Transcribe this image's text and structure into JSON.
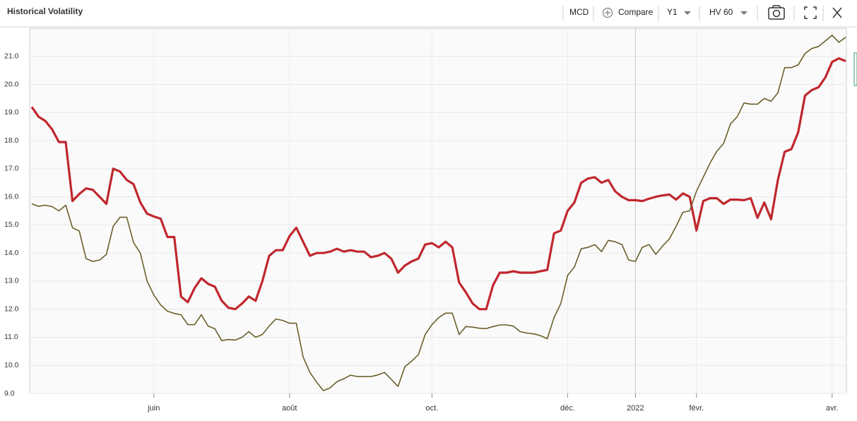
{
  "chart_data": {
    "type": "line",
    "title": "Historical Volatility",
    "categories": [
      null,
      null,
      null,
      null,
      null,
      null,
      null,
      null,
      null,
      null,
      null,
      null,
      null,
      null,
      null,
      null,
      null,
      null,
      "juin",
      null,
      null,
      null,
      null,
      null,
      null,
      null,
      null,
      null,
      null,
      null,
      null,
      null,
      null,
      null,
      null,
      null,
      null,
      null,
      "août",
      null,
      null,
      null,
      null,
      null,
      null,
      null,
      null,
      null,
      null,
      null,
      null,
      null,
      null,
      null,
      null,
      null,
      null,
      null,
      null,
      "oct.",
      null,
      null,
      null,
      null,
      null,
      null,
      null,
      null,
      null,
      null,
      null,
      null,
      null,
      null,
      null,
      null,
      null,
      null,
      null,
      "déc.",
      null,
      null,
      null,
      null,
      null,
      null,
      null,
      null,
      null,
      "2022",
      null,
      null,
      null,
      null,
      null,
      null,
      null,
      null,
      "févr.",
      null,
      null,
      null,
      null,
      null,
      null,
      null,
      null,
      null,
      null,
      null,
      null,
      null,
      null,
      null,
      null,
      null,
      null,
      null,
      "avr.",
      null,
      null
    ],
    "series": [
      {
        "color": "#c0272d",
        "values": [
          19.2,
          18.85,
          18.7,
          18.4,
          17.95,
          17.95,
          15.85,
          16.1,
          16.3,
          16.25,
          16.0,
          15.75,
          17.0,
          16.9,
          16.6,
          16.45,
          15.8,
          15.4,
          15.3,
          15.22,
          14.57,
          14.57,
          12.45,
          12.25,
          12.75,
          13.1,
          12.9,
          12.8,
          12.3,
          12.05,
          12.0,
          12.2,
          12.45,
          12.3,
          13.0,
          13.9,
          14.1,
          14.1,
          14.6,
          14.9,
          14.4,
          13.9,
          14.0,
          14.0,
          14.05,
          14.15,
          14.05,
          14.1,
          14.05,
          14.05,
          13.85,
          13.9,
          14.0,
          13.8,
          13.3,
          13.55,
          13.7,
          13.8,
          14.3,
          14.35,
          14.2,
          14.4,
          14.2,
          12.95,
          12.6,
          12.2,
          12.0,
          12.0,
          12.85,
          13.3,
          13.3,
          13.35,
          13.3,
          13.3,
          13.3,
          13.35,
          13.4,
          14.7,
          14.8,
          15.5,
          15.8,
          16.5,
          16.65,
          16.7,
          16.5,
          16.6,
          16.2,
          16.0,
          15.88,
          15.88,
          15.85,
          15.93,
          16.0,
          16.05,
          16.08,
          15.9,
          16.12,
          16.0,
          14.8,
          15.85,
          15.95,
          15.95,
          15.75,
          15.9,
          15.9,
          15.88,
          15.95,
          15.25,
          15.8,
          15.2,
          16.6,
          17.6,
          17.7,
          18.3,
          19.6,
          19.8,
          19.9,
          20.25,
          20.8,
          20.93,
          20.83
        ]
      },
      {
        "color": "#6b5f2a",
        "values": [
          15.75,
          15.66,
          15.7,
          15.65,
          15.5,
          15.7,
          14.9,
          14.78,
          13.8,
          13.7,
          13.75,
          13.95,
          14.95,
          15.27,
          15.27,
          14.37,
          14.0,
          13.0,
          12.5,
          12.15,
          11.93,
          11.85,
          11.8,
          11.45,
          11.45,
          11.8,
          11.4,
          11.3,
          10.88,
          10.92,
          10.9,
          11.0,
          11.2,
          11.0,
          11.1,
          11.4,
          11.65,
          11.6,
          11.5,
          11.5,
          10.3,
          9.75,
          9.4,
          9.1,
          9.2,
          9.42,
          9.52,
          9.65,
          9.6,
          9.6,
          9.6,
          9.66,
          9.75,
          9.5,
          9.25,
          9.95,
          10.15,
          10.38,
          11.1,
          11.45,
          11.7,
          11.86,
          11.86,
          11.1,
          11.38,
          11.36,
          11.32,
          11.31,
          11.38,
          11.44,
          11.44,
          11.4,
          11.2,
          11.15,
          11.12,
          11.06,
          10.95,
          11.7,
          12.2,
          13.2,
          13.5,
          14.15,
          14.2,
          14.3,
          14.05,
          14.45,
          14.4,
          14.3,
          13.75,
          13.7,
          14.2,
          14.3,
          13.95,
          14.25,
          14.5,
          14.95,
          15.45,
          15.5,
          16.2,
          16.7,
          17.2,
          17.62,
          17.9,
          18.59,
          18.85,
          19.34,
          19.3,
          19.3,
          19.5,
          19.4,
          19.7,
          20.6,
          20.6,
          20.7,
          21.1,
          21.28,
          21.35,
          21.55,
          21.75,
          21.5,
          21.68
        ]
      }
    ],
    "ylim": [
      9,
      22
    ],
    "yticks": [
      {
        "value": 9,
        "label": "9.0"
      },
      {
        "value": 10,
        "label": "10.0"
      },
      {
        "value": 11,
        "label": "11.0"
      },
      {
        "value": 12,
        "label": "12.0"
      },
      {
        "value": 13,
        "label": "13.0"
      },
      {
        "value": 14,
        "label": "14.0"
      },
      {
        "value": 15,
        "label": "15.0"
      },
      {
        "value": 16,
        "label": "16.0"
      },
      {
        "value": 17,
        "label": "17.0"
      },
      {
        "value": 18,
        "label": "18.0"
      },
      {
        "value": 19,
        "label": "19.0"
      },
      {
        "value": 20,
        "label": "20.0"
      },
      {
        "value": 21,
        "label": "21.0"
      }
    ],
    "grid": true
  },
  "toolbar": {
    "symbol": "MCD",
    "compare": "Compare",
    "period": "Y1",
    "indicator": "HV 60"
  }
}
